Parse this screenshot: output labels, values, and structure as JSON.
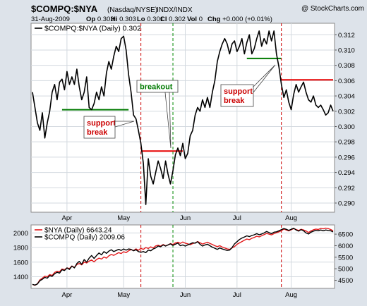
{
  "header": {
    "symbol": "$COMPQ:$NYA",
    "descriptor": "(Nasdaq/NYSE)",
    "exchange": "INDX/INDX",
    "copyright": "@ StockCharts.com",
    "date": "31-Aug-2009",
    "quote": [
      {
        "label": "Op",
        "value": "0.303"
      },
      {
        "label": "Hi",
        "value": "0.303"
      },
      {
        "label": "Lo",
        "value": "0.301"
      },
      {
        "label": "Cl",
        "value": "0.302"
      },
      {
        "label": "Vol",
        "value": "0"
      },
      {
        "label": "Chg",
        "value": "+0.000 (+0.01%)"
      }
    ]
  },
  "colors": {
    "frame": "#dde3ea",
    "panel": "#ffffff",
    "grid": "#d3d9df",
    "ratio_line": "#000000",
    "nya_line": "#e31a1c",
    "compq_line": "#000000",
    "support": "#007a00",
    "resistance": "#e60000",
    "vline_red": "#cc0000",
    "vline_green": "#008800"
  },
  "annotations": [
    {
      "text": "support break",
      "lines": [
        "support",
        "break"
      ],
      "color": "#cc0000"
    },
    {
      "text": "breakout",
      "lines": [
        "breakout"
      ],
      "color": "#007a00"
    },
    {
      "text": "support break",
      "lines": [
        "support",
        "break"
      ],
      "color": "#cc0000"
    }
  ],
  "chart_data": [
    {
      "type": "line",
      "title": "",
      "legend": {
        "text": "$COMPQ:$NYA (Daily) 0.302",
        "placement": "top-left"
      },
      "series": [
        {
          "name": "$COMPQ:$NYA (Daily) 0.302",
          "values": [
            0.3045,
            0.3025,
            0.3005,
            0.2995,
            0.3018,
            0.2985,
            0.3005,
            0.302,
            0.3045,
            0.3055,
            0.3035,
            0.3058,
            0.3062,
            0.3048,
            0.3072,
            0.3055,
            0.3065,
            0.3055,
            0.3075,
            0.3052,
            0.3035,
            0.3045,
            0.3065,
            0.3025,
            0.3022,
            0.303,
            0.3045,
            0.3035,
            0.3052,
            0.304,
            0.307,
            0.3085,
            0.3075,
            0.3092,
            0.3105,
            0.3098,
            0.3115,
            0.3118,
            0.31,
            0.3068,
            0.3045,
            0.3015,
            0.301,
            0.2995,
            0.2978,
            0.2952,
            0.2898,
            0.2958,
            0.2935,
            0.2925,
            0.294,
            0.2955,
            0.2945,
            0.2932,
            0.2955,
            0.2938,
            0.2925,
            0.2942,
            0.2963,
            0.2972,
            0.2962,
            0.2978,
            0.2958,
            0.2965,
            0.2988,
            0.2995,
            0.3015,
            0.3025,
            0.302,
            0.3035,
            0.3025,
            0.3038,
            0.3025,
            0.3045,
            0.306,
            0.3085,
            0.3098,
            0.3108,
            0.3115,
            0.3108,
            0.3095,
            0.3108,
            0.3112,
            0.3098,
            0.3105,
            0.3115,
            0.3095,
            0.311,
            0.312,
            0.3095,
            0.3102,
            0.3115,
            0.3125,
            0.3105,
            0.3115,
            0.3108,
            0.3125,
            0.3112,
            0.3125,
            0.3095,
            0.3078,
            0.3055,
            0.3038,
            0.3048,
            0.3032,
            0.3022,
            0.3042,
            0.3055,
            0.3045,
            0.3052,
            0.3058,
            0.3045,
            0.3035,
            0.3032,
            0.304,
            0.3028,
            0.3025,
            0.3028,
            0.3022,
            0.3015,
            0.3018,
            0.3028,
            0.302
          ]
        }
      ],
      "x_labels": [
        "Apr",
        "May",
        "Jun",
        "Jul",
        "Aug"
      ],
      "y_ticks": [
        0.29,
        0.292,
        0.294,
        0.296,
        0.298,
        0.3,
        0.302,
        0.304,
        0.306,
        0.308,
        0.31,
        0.312
      ],
      "y_tick_labels": [
        "0.290",
        "0.292",
        "0.294",
        "0.296",
        "0.298",
        "0.300",
        "0.302",
        "0.304",
        "0.306",
        "0.308",
        "0.310",
        "0.312"
      ],
      "ylim": [
        0.2888,
        0.3135
      ],
      "reference_lines": [
        {
          "kind": "support",
          "y": 0.3022,
          "x_from_index": 12,
          "x_to_index": 39
        },
        {
          "kind": "resistance",
          "y": 0.2968,
          "x_from_index": 44,
          "x_to_index": 61
        },
        {
          "kind": "support",
          "y": 0.3089,
          "x_from_index": 87,
          "x_to_index": 101
        },
        {
          "kind": "resistance",
          "y": 0.3061,
          "x_from_index": 101,
          "x_to_index": 122
        }
      ],
      "vertical_markers": [
        {
          "index": 44,
          "color": "red"
        },
        {
          "index": 57,
          "color": "green"
        },
        {
          "index": 101,
          "color": "red"
        }
      ],
      "grid": true
    },
    {
      "type": "line",
      "title": "",
      "legend_placement": "top-left",
      "series": [
        {
          "name": "$NYA (Daily) 6643.24",
          "axis": "right",
          "values": [
            4320,
            4280,
            4350,
            4520,
            4590,
            4680,
            4650,
            4750,
            4710,
            4840,
            4890,
            4870,
            4990,
            4960,
            5040,
            5010,
            5120,
            5060,
            5180,
            5230,
            5170,
            5290,
            5250,
            5330,
            5380,
            5300,
            5400,
            5460,
            5420,
            5510,
            5460,
            5560,
            5620,
            5580,
            5640,
            5700,
            5660,
            5740,
            5700,
            5780,
            5830,
            5790,
            5860,
            5800,
            5890,
            5840,
            5920,
            5880,
            5950,
            5900,
            5990,
            6020,
            5980,
            6050,
            6000,
            6030,
            6090,
            6050,
            6120,
            6150,
            6100,
            6160,
            6110,
            6080,
            6040,
            6090,
            6120,
            6180,
            6130,
            6070,
            6110,
            6150,
            6100,
            6050,
            6000,
            5960,
            6000,
            5940,
            5900,
            5860,
            5840,
            5900,
            5960,
            6060,
            6120,
            6180,
            6240,
            6290,
            6260,
            6320,
            6360,
            6410,
            6380,
            6430,
            6480,
            6530,
            6500,
            6470,
            6520,
            6560,
            6600,
            6650,
            6720,
            6680,
            6640,
            6690,
            6740,
            6700,
            6660,
            6710,
            6680,
            6640,
            6570,
            6640,
            6690,
            6720,
            6700,
            6750,
            6730,
            6760,
            6740,
            6700,
            6650
          ]
        },
        {
          "name": "$COMPQ (Daily) 2009.06",
          "axis": "left",
          "values": [
            1295,
            1285,
            1300,
            1345,
            1365,
            1390,
            1380,
            1415,
            1405,
            1440,
            1460,
            1450,
            1495,
            1485,
            1520,
            1500,
            1545,
            1520,
            1580,
            1610,
            1570,
            1635,
            1600,
            1655,
            1690,
            1650,
            1690,
            1725,
            1700,
            1745,
            1720,
            1750,
            1770,
            1745,
            1760,
            1775,
            1760,
            1780,
            1765,
            1780,
            1775,
            1755,
            1770,
            1745,
            1735,
            1745,
            1730,
            1765,
            1755,
            1780,
            1795,
            1820,
            1810,
            1835,
            1820,
            1835,
            1850,
            1830,
            1845,
            1860,
            1825,
            1835,
            1820,
            1835,
            1850,
            1865,
            1860,
            1880,
            1845,
            1820,
            1835,
            1845,
            1825,
            1805,
            1790,
            1775,
            1795,
            1780,
            1770,
            1760,
            1765,
            1800,
            1850,
            1880,
            1910,
            1930,
            1945,
            1960,
            1950,
            1965,
            1975,
            1990,
            1975,
            1985,
            2000,
            2020,
            2005,
            1990,
            2010,
            2015,
            2030,
            2045,
            2060,
            2050,
            2035,
            2050,
            2065,
            2040,
            2025,
            2045,
            2030,
            2000,
            1985,
            2010,
            2025,
            2035,
            2030,
            2040,
            2030,
            2040,
            2035,
            2030,
            2015
          ]
        }
      ],
      "x_labels": [
        "Apr",
        "May",
        "Jun",
        "Jul",
        "Aug"
      ],
      "y_left_ticks": [
        1400,
        1600,
        1800,
        2000
      ],
      "y_left_lim": [
        1240,
        2110
      ],
      "y_right_ticks": [
        4500,
        5000,
        5500,
        6000,
        6500
      ],
      "y_right_lim": [
        4150,
        6900
      ],
      "vertical_markers": [
        {
          "index": 44,
          "color": "red"
        },
        {
          "index": 57,
          "color": "green"
        },
        {
          "index": 101,
          "color": "red"
        }
      ],
      "grid": true
    }
  ]
}
